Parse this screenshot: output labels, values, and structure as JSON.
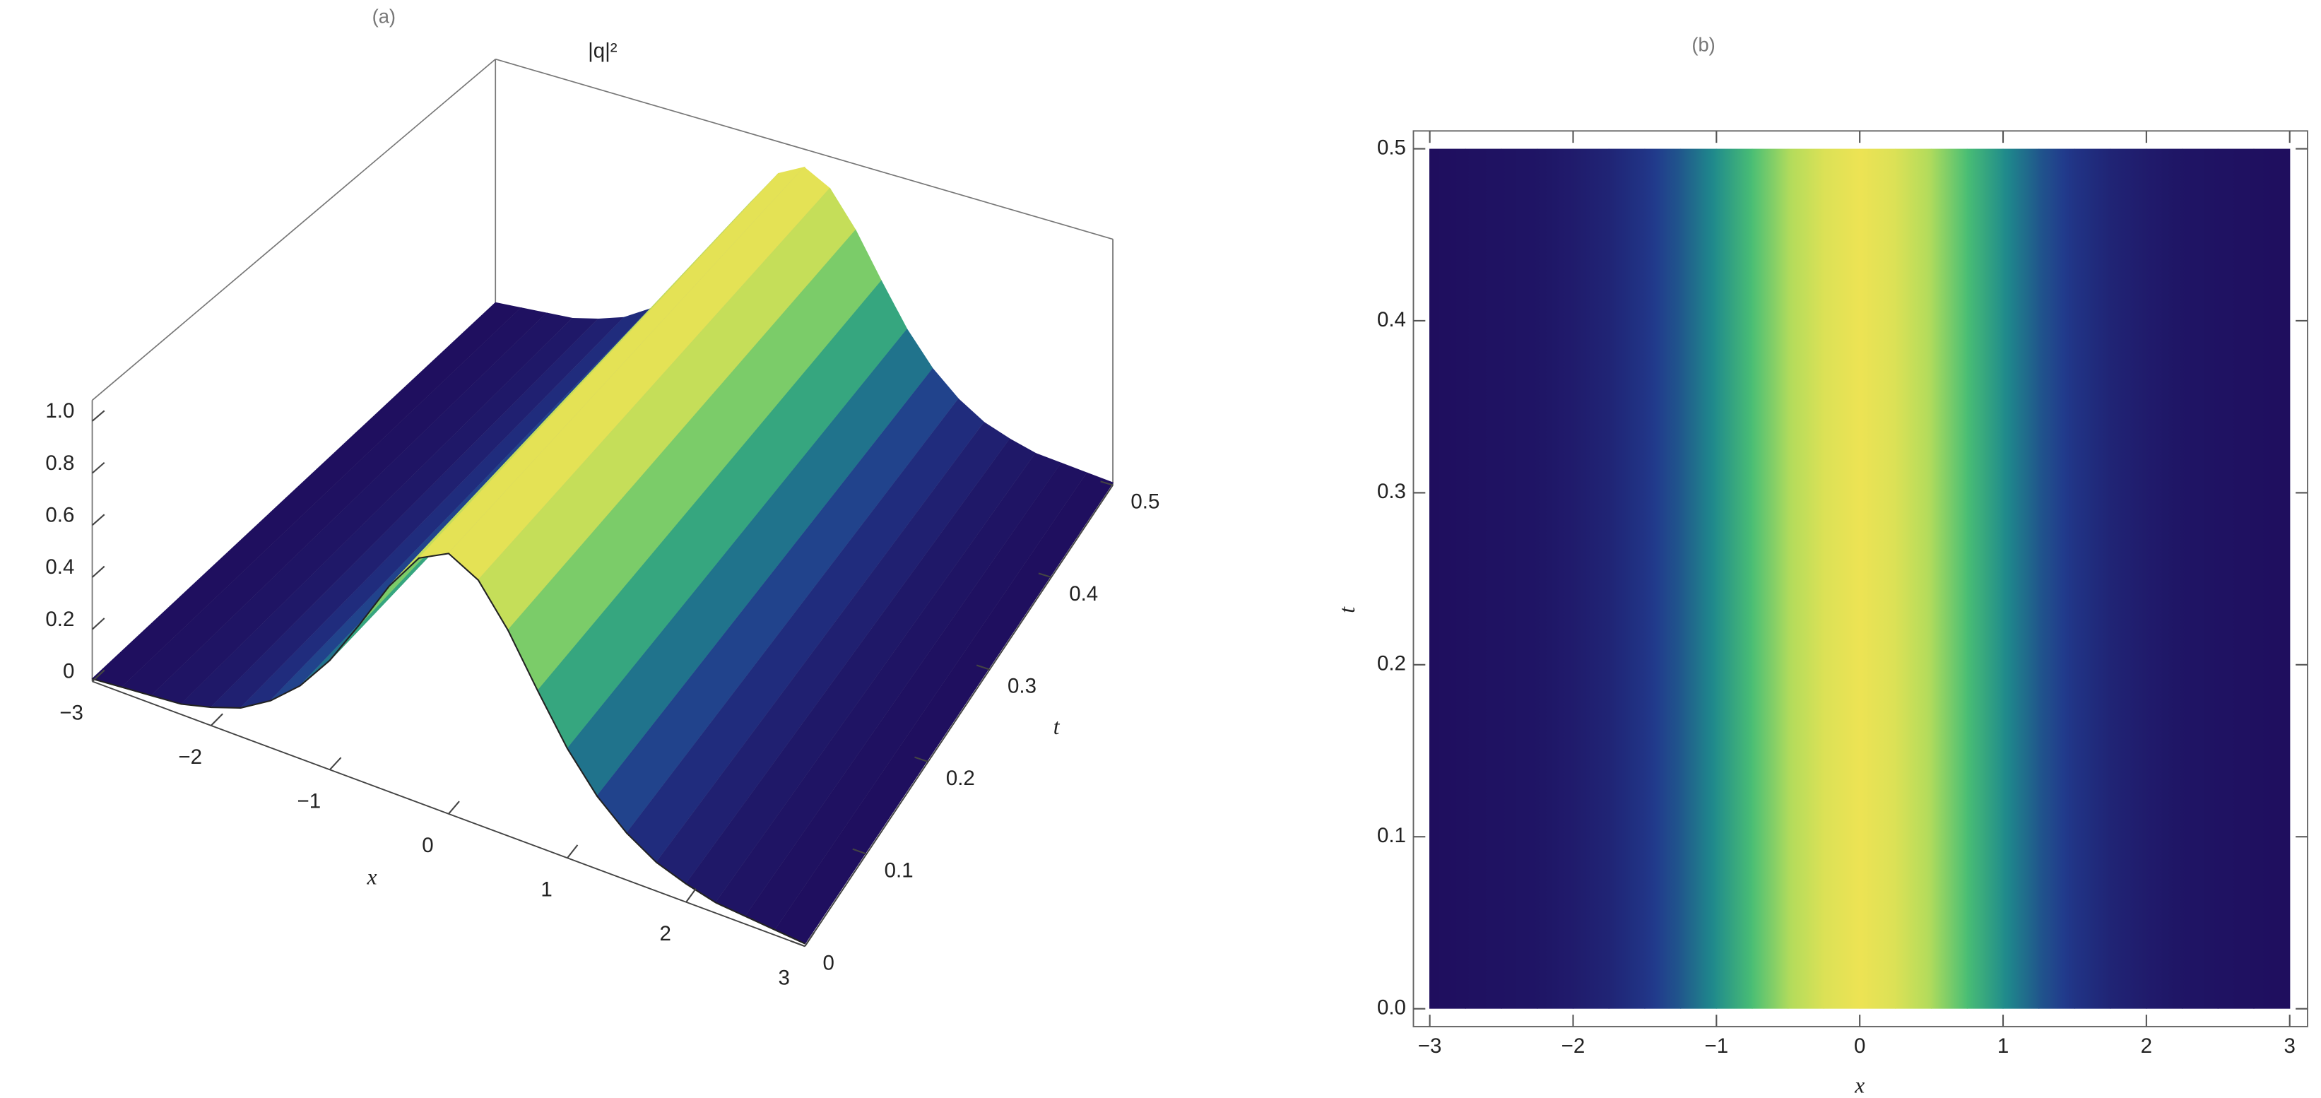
{
  "chart_data": [
    {
      "type": "surface3d",
      "panel": "(a)",
      "title": "|q|²",
      "x": [
        -3,
        -2.75,
        -2.5,
        -2.25,
        -2,
        -1.75,
        -1.5,
        -1.25,
        -1,
        -0.75,
        -0.5,
        -0.25,
        0,
        0.25,
        0.5,
        0.75,
        1,
        1.25,
        1.5,
        1.75,
        2,
        2.25,
        2.5,
        2.75,
        3
      ],
      "values": [
        0.01,
        0.02,
        0.03,
        0.04,
        0.07,
        0.11,
        0.18,
        0.28,
        0.42,
        0.6,
        0.79,
        0.94,
        1,
        0.94,
        0.79,
        0.6,
        0.42,
        0.28,
        0.18,
        0.11,
        0.07,
        0.04,
        0.03,
        0.02,
        0.01
      ],
      "xlabel": "x",
      "ylabel": "t",
      "xlim": [
        -3,
        3
      ],
      "ylim": [
        0,
        0.5
      ],
      "zlim": [
        0,
        1
      ],
      "xticks": [
        {
          "value": -3,
          "label": "−3"
        },
        {
          "value": -2,
          "label": "−2"
        },
        {
          "value": -1,
          "label": "−1"
        },
        0,
        1,
        2,
        3
      ],
      "yticks": [
        0,
        0.1,
        0.2,
        0.3,
        0.4,
        0.5
      ],
      "zticks": [
        0,
        0.2,
        0.4,
        0.6,
        0.8,
        {
          "value": 1,
          "label": "1.0"
        }
      ],
      "colormap": [
        "#1f0e5e",
        "#213a8c",
        "#1f8a8c",
        "#4bbf74",
        "#b3dc5c",
        "#ede354"
      ]
    },
    {
      "type": "density",
      "panel": "(b)",
      "x": [
        -3,
        -2.75,
        -2.5,
        -2.25,
        -2,
        -1.75,
        -1.5,
        -1.25,
        -1,
        -0.75,
        -0.5,
        -0.25,
        0,
        0.25,
        0.5,
        0.75,
        1,
        1.25,
        1.5,
        1.75,
        2,
        2.25,
        2.5,
        2.75,
        3
      ],
      "values": [
        0.01,
        0.02,
        0.03,
        0.04,
        0.07,
        0.11,
        0.18,
        0.28,
        0.42,
        0.6,
        0.79,
        0.94,
        1,
        0.94,
        0.79,
        0.6,
        0.42,
        0.28,
        0.18,
        0.11,
        0.07,
        0.04,
        0.03,
        0.02,
        0.01
      ],
      "xlabel": "x",
      "ylabel": "t",
      "xlim": [
        -3,
        3
      ],
      "ylim": [
        0,
        0.5
      ],
      "xticks": [
        {
          "value": -3,
          "label": "−3"
        },
        {
          "value": -2,
          "label": "−2"
        },
        {
          "value": -1,
          "label": "−1"
        },
        0,
        1,
        2,
        3
      ],
      "yticks": [
        {
          "value": 0,
          "label": "0.0"
        },
        0.1,
        0.2,
        0.3,
        0.4,
        0.5
      ],
      "colormap": [
        "#1f0e5e",
        "#213a8c",
        "#1f8a8c",
        "#4bbf74",
        "#b3dc5c",
        "#ede354"
      ]
    }
  ]
}
